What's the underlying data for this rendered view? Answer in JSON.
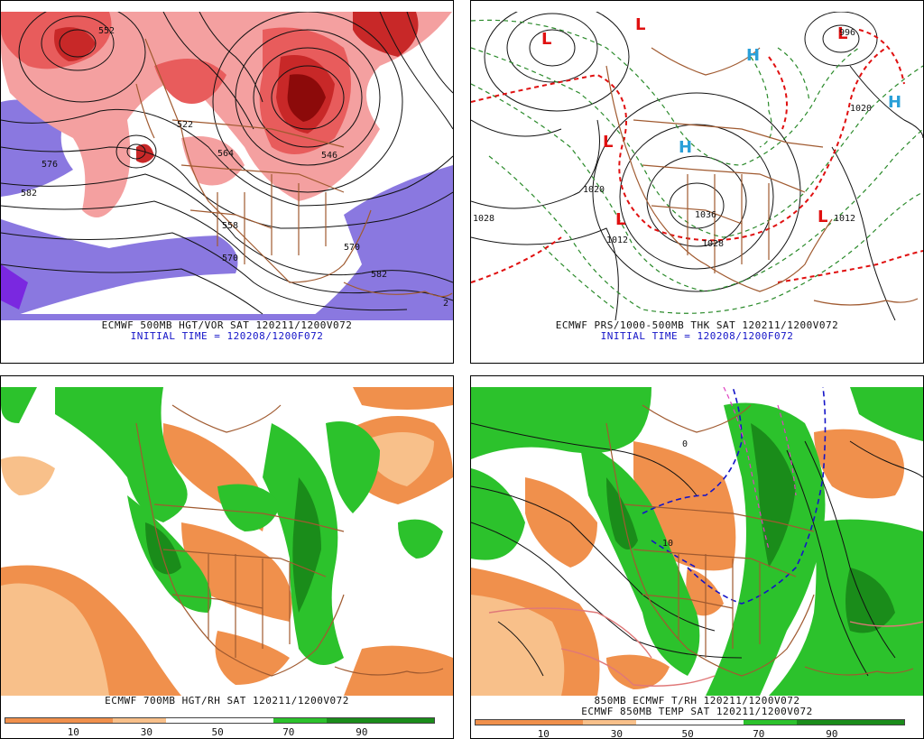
{
  "panels": {
    "top_left": {
      "caption_line1": "ECMWF 500MB HGT/VOR SAT 120211/1200V072",
      "caption_line2": "INITIAL TIME = 120208/1200F072",
      "contour_labels": [
        "552",
        "582",
        "576",
        "570",
        "558",
        "564",
        "546",
        "522",
        "570",
        "582",
        "2"
      ]
    },
    "top_right": {
      "caption_line1": "ECMWF PRS/1000-500MB THK SAT 120211/1200V072",
      "caption_line2": "INITIAL TIME = 120208/1200F072",
      "contour_labels": [
        "1020",
        "1028",
        "1012",
        "1020",
        "996",
        "1036",
        "1028",
        "1012"
      ],
      "pressure_centers": [
        {
          "kind": "L"
        },
        {
          "kind": "L"
        },
        {
          "kind": "L"
        },
        {
          "kind": "L"
        },
        {
          "kind": "L"
        },
        {
          "kind": "L"
        },
        {
          "kind": "H"
        },
        {
          "kind": "H"
        },
        {
          "kind": "H"
        }
      ]
    },
    "bottom_left": {
      "caption_line1": "ECMWF 700MB HGT/RH SAT 120211/1200V072",
      "colorbar_labels": [
        "10",
        "30",
        "50",
        "70",
        "90"
      ]
    },
    "bottom_right": {
      "caption_line1": "850MB ECMWF T/RH 120211/1200V072",
      "caption_line2": "ECMWF 850MB TEMP SAT 120211/1200V072",
      "colorbar_labels": [
        "10",
        "30",
        "50",
        "70",
        "90"
      ],
      "contour_labels": [
        "0",
        "10"
      ]
    }
  },
  "colors": {
    "vort_low": "#f4a0a0",
    "vort_mid": "#e85c5c",
    "vort_high": "#c82828",
    "vort_max": "#8c0a0a",
    "neg_vort": "#8a78e0",
    "neg_vort_dark": "#7a28e0",
    "rh_dry_dark": "#f0904c",
    "rh_dry_light": "#f8c08a",
    "rh_moist": "#2cc22c",
    "rh_moist_dark": "#1a8c1a",
    "borders": "#a05a30",
    "low_red": "#e01010",
    "high_blue": "#2aa0d8",
    "thk_green": "#2a8a2a",
    "caption_blue": "#1414c8"
  }
}
